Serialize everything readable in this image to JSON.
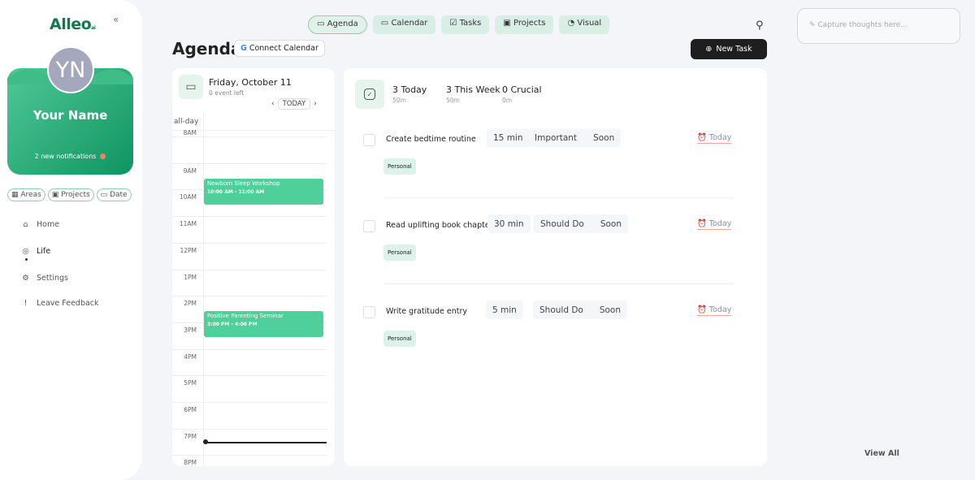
{
  "sidebar": {
    "logo": "Alleo",
    "logo_suffix": "ai",
    "collapse_icon": "«",
    "avatar_initials": "YN",
    "user_name": "Your Name",
    "notifications": "2 new notifications",
    "filters": [
      {
        "icon": "▦",
        "label": "Areas"
      },
      {
        "icon": "▣",
        "label": "Projects"
      },
      {
        "icon": "▭",
        "label": "Date"
      }
    ],
    "nav": [
      {
        "icon": "⌂",
        "label": "Home"
      },
      {
        "icon": "◎",
        "label": "Life"
      },
      {
        "icon": "⚙",
        "label": "Settings"
      },
      {
        "icon": "!",
        "label": "Leave Feedback"
      }
    ]
  },
  "topnav": [
    {
      "icon": "▭",
      "label": "Agenda",
      "active": true
    },
    {
      "icon": "▭",
      "label": "Calendar"
    },
    {
      "icon": "☑",
      "label": "Tasks"
    },
    {
      "icon": "▣",
      "label": "Projects"
    },
    {
      "icon": "◔",
      "label": "Visual"
    }
  ],
  "capture_placeholder": "Capture thoughts here...",
  "page_title": "Agenda",
  "connect_calendar": "Connect Calendar",
  "new_task": "New Task",
  "calendar": {
    "date": "Friday, October 11",
    "events_left": "0 event left",
    "today_button": "TODAY",
    "all_day": "all-day",
    "hours": [
      "8AM",
      "9AM",
      "10AM",
      "11AM",
      "12PM",
      "1PM",
      "2PM",
      "3PM",
      "4PM",
      "5PM",
      "6PM",
      "7PM",
      "8PM"
    ],
    "events": [
      {
        "name": "Newborn Sleep Workshop",
        "time": "10:00 AM - 11:00 AM"
      },
      {
        "name": "Positive Parenting Seminar",
        "time": "3:00 PM - 4:00 PM"
      }
    ]
  },
  "stats": [
    {
      "label": "3 Today",
      "sub": "50m"
    },
    {
      "label": "3 This Week",
      "sub": "50m"
    },
    {
      "label": "0 Crucial",
      "sub": "0m"
    }
  ],
  "tasks": [
    {
      "name": "Create bedtime routine",
      "duration": "15 min",
      "priority": "Important",
      "timing": "Soon",
      "due": "Today",
      "tag": "Personal"
    },
    {
      "name": "Read uplifting book chapter",
      "duration": "30 min",
      "priority": "Should Do",
      "timing": "Soon",
      "due": "Today",
      "tag": "Personal"
    },
    {
      "name": "Write gratitude entry",
      "duration": "5 min",
      "priority": "Should Do",
      "timing": "Soon",
      "due": "Today",
      "tag": "Personal"
    }
  ],
  "view_all": "View All",
  "colors": {
    "brand": "#127a4f",
    "event": "#4fcf9a",
    "accent_light": "#d9eee5"
  }
}
